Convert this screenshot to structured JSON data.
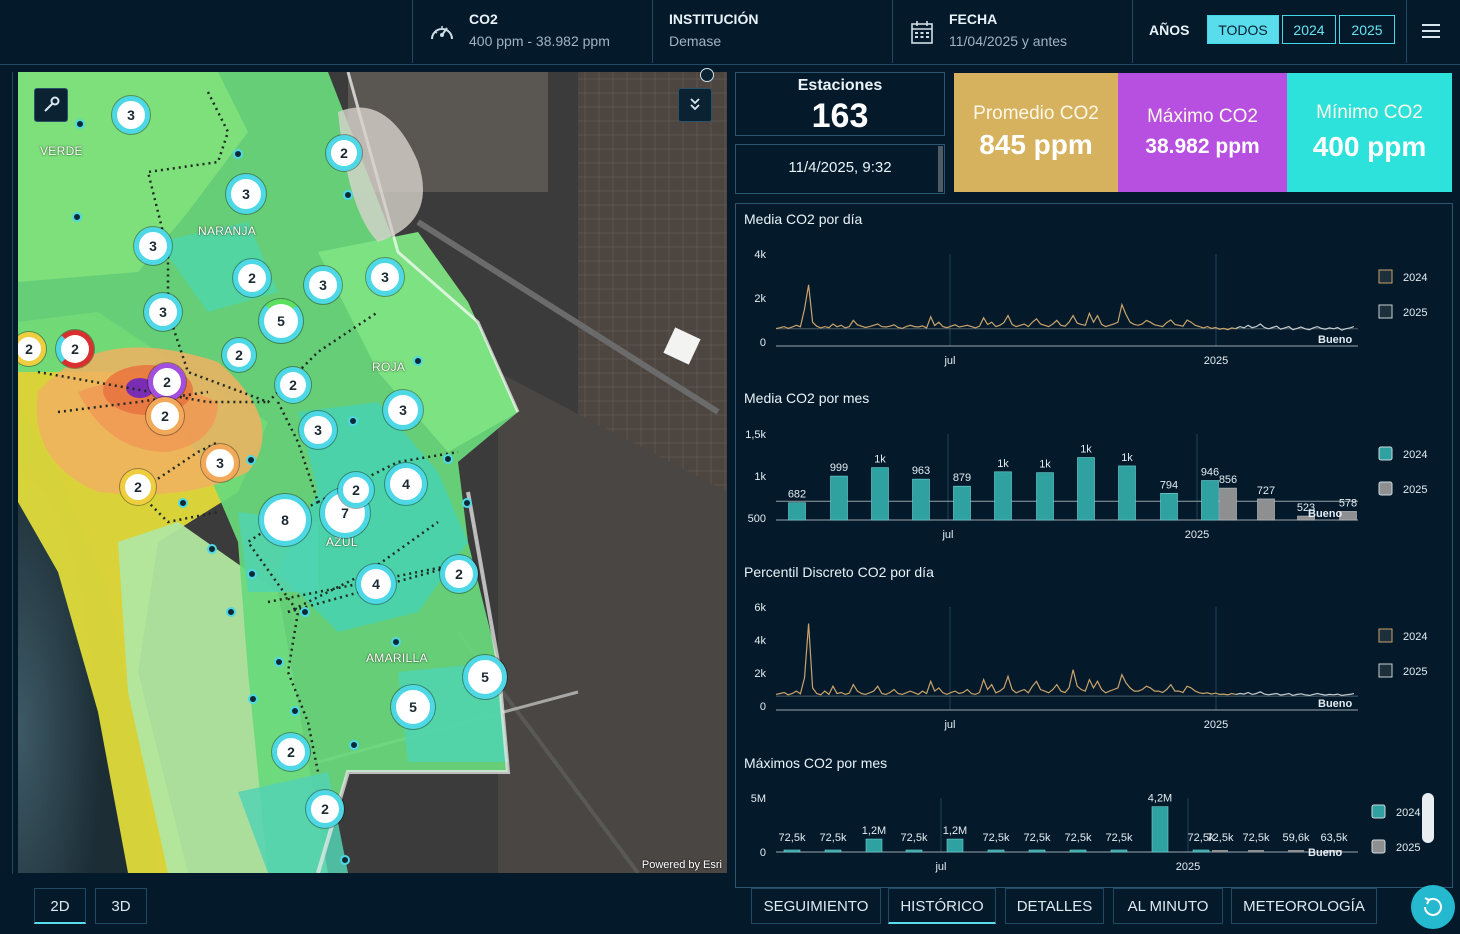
{
  "filters": {
    "co2": {
      "title": "CO2",
      "value": "400 ppm - 38.982 ppm",
      "icon": "gauge-icon"
    },
    "institucion": {
      "title": "INSTITUCIÓN",
      "value": "Demase"
    },
    "fecha": {
      "title": "FECHA",
      "value": "11/04/2025 y antes",
      "icon": "calendar-icon"
    },
    "anos": {
      "title": "AÑOS",
      "options": [
        "TODOS",
        "2024",
        "2025"
      ],
      "selected": "TODOS"
    }
  },
  "map": {
    "zones": [
      "VERDE",
      "NARANJA",
      "ROJA",
      "AZUL",
      "AMARILLA"
    ],
    "clusters": [
      "3",
      "2",
      "3",
      "3",
      "2",
      "3",
      "3",
      "3",
      "5",
      "2",
      "2",
      "2",
      "2",
      "2",
      "2",
      "3",
      "3",
      "3",
      "2",
      "4",
      "8",
      "7",
      "4",
      "2",
      "5",
      "5",
      "2",
      "2",
      "2"
    ],
    "powered_by": "Powered by Esri",
    "view_modes": [
      "2D",
      "3D"
    ],
    "selected_view": "2D"
  },
  "stations": {
    "label": "Estaciones",
    "count": "163",
    "timestamp": "11/4/2025, 9:32"
  },
  "kpis": {
    "promedio": {
      "label": "Promedio CO2",
      "value": "845 ppm",
      "color": "#d7b25e"
    },
    "maximo": {
      "label": "Máximo CO2",
      "value": "38.982 ppm",
      "color": "#b74fe0"
    },
    "minimo": {
      "label": "Mínimo CO2",
      "value": "400 ppm",
      "color": "#2ee2dc"
    }
  },
  "tabs": [
    "SEGUIMIENTO",
    "HISTÓRICO",
    "DETALLES",
    "AL MINUTO",
    "METEOROLOGÍA"
  ],
  "selected_tab": "HISTÓRICO",
  "chart_data": [
    {
      "type": "line",
      "title": "Media CO2 por día",
      "y_ticks": [
        "0",
        "2k",
        "4k"
      ],
      "x_ticks": [
        "jul",
        "2025"
      ],
      "annotation": "Bueno",
      "series": [
        {
          "name": "2024",
          "color": "#c9a36a",
          "values": [
            610,
            650,
            700,
            620,
            680,
            760,
            690,
            1500,
            2600,
            900,
            720,
            640,
            700,
            650,
            820,
            690,
            760,
            640,
            700,
            980,
            780,
            720,
            660,
            700,
            760,
            820,
            700,
            680,
            720,
            780,
            660,
            620,
            700,
            760,
            700,
            680,
            730,
            640,
            1150,
            750,
            900,
            700,
            650,
            720,
            780,
            680,
            720,
            760,
            700,
            640,
            720,
            1100,
            800,
            900,
            700,
            760,
            880,
            1200,
            800,
            700,
            760,
            820,
            700,
            900,
            1050,
            820,
            760,
            700,
            820,
            980,
            760,
            720,
            900,
            1200,
            860,
            800,
            760,
            1300,
            900,
            1200,
            800,
            700,
            760,
            820,
            900,
            1700,
            1250,
            900,
            800,
            760,
            820,
            980,
            900,
            780,
            740,
            700,
            880,
            1000,
            800,
            760,
            720,
            1000,
            900,
            760,
            700,
            640,
            700,
            620,
            660,
            580,
            620,
            560,
            640,
            600
          ]
        },
        {
          "name": "2025",
          "color": "#c7cdd1",
          "values": [
            620,
            700,
            640,
            760,
            650,
            700,
            820,
            660,
            600,
            660,
            720,
            580,
            640,
            700,
            560,
            620,
            680,
            600,
            560,
            640,
            700,
            620,
            580,
            640,
            600,
            660,
            540,
            600,
            640,
            700
          ]
        }
      ]
    },
    {
      "type": "bar",
      "title": "Media CO2 por mes",
      "y_ticks": [
        "500",
        "1k",
        "1,5k"
      ],
      "x_ticks": [
        "jul",
        "2025"
      ],
      "annotation": "Bueno",
      "series": [
        {
          "name": "2024",
          "color": "#2fa1a1",
          "values": [
            682,
            999,
            1100,
            963,
            879,
            1050,
            1040,
            1220,
            1120,
            794,
            946
          ]
        },
        {
          "name": "2025",
          "color": "#8d8f91",
          "values": [
            856,
            727,
            523,
            578
          ]
        }
      ],
      "labels_2024": [
        "682",
        "999",
        "1k",
        "963",
        "879",
        "1k",
        "1k",
        "1k",
        "1k",
        "794",
        "946"
      ],
      "labels_2025": [
        "856",
        "727",
        "523",
        "578"
      ]
    },
    {
      "type": "line",
      "title": "Percentil Discreto CO2 por día",
      "y_ticks": [
        "0",
        "2k",
        "4k",
        "6k"
      ],
      "x_ticks": [
        "jul",
        "2025"
      ],
      "annotation": "Bueno",
      "series": [
        {
          "name": "2024",
          "color": "#c9a36a",
          "values": [
            700,
            760,
            820,
            680,
            760,
            900,
            740,
            1700,
            5000,
            1100,
            760,
            680,
            900,
            700,
            1200,
            760,
            820,
            700,
            780,
            1300,
            900,
            760,
            700,
            800,
            900,
            1200,
            760,
            700,
            820,
            1000,
            760,
            700,
            800,
            900,
            800,
            700,
            900,
            760,
            1500,
            900,
            1100,
            800,
            700,
            820,
            900,
            760,
            820,
            1000,
            760,
            700,
            820,
            1600,
            1000,
            1300,
            800,
            900,
            1100,
            1800,
            1000,
            800,
            900,
            1000,
            800,
            1200,
            1500,
            1000,
            900,
            800,
            1000,
            1300,
            900,
            820,
            1100,
            2200,
            1200,
            1000,
            900,
            1600,
            1100,
            1500,
            1000,
            800,
            900,
            1000,
            1100,
            1900,
            1400,
            1100,
            900,
            900,
            1000,
            1200,
            1100,
            900,
            900,
            820,
            1000,
            1300,
            900,
            900,
            820,
            1200,
            1100,
            900,
            800,
            760,
            800,
            720,
            780,
            700,
            720,
            680,
            760,
            700
          ]
        },
        {
          "name": "2025",
          "color": "#c7cdd1",
          "values": [
            700,
            760,
            720,
            820,
            700,
            760,
            860,
            720,
            680,
            720,
            760,
            660,
            700,
            760,
            640,
            700,
            740,
            680,
            640,
            700,
            760,
            700,
            660,
            700,
            680,
            720,
            640,
            680,
            700,
            760
          ]
        }
      ]
    },
    {
      "type": "bar",
      "title": "Máximos CO2 por mes",
      "y_ticks": [
        "0",
        "5M"
      ],
      "x_ticks": [
        "jul",
        "2025"
      ],
      "annotation": "Bueno",
      "series": [
        {
          "name": "2024",
          "color": "#2fa1a1",
          "values": [
            72500,
            72500,
            1200000,
            72500,
            1200000,
            72500,
            72500,
            72500,
            72500,
            4200000,
            72500
          ]
        },
        {
          "name": "2025",
          "color": "#8d8f91",
          "values": [
            72500,
            72500,
            59600,
            63500
          ]
        }
      ],
      "labels_2024": [
        "72,5k",
        "72,5k",
        "1,2M",
        "72,5k",
        "1,2M",
        "72,5k",
        "72,5k",
        "72,5k",
        "72,5k",
        "4,2M",
        "72,5k"
      ],
      "labels_2025": [
        "72,5k",
        "72,5k",
        "59,6k",
        "63,5k"
      ]
    }
  ]
}
